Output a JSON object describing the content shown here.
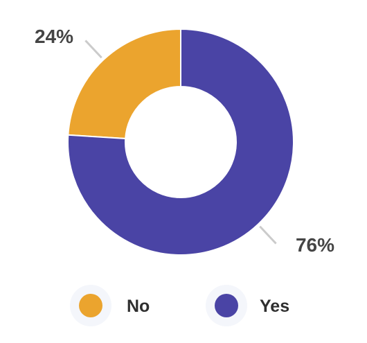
{
  "chart_data": {
    "type": "pie",
    "variant": "donut",
    "categories": [
      "No",
      "Yes"
    ],
    "values": [
      24,
      76
    ],
    "unit": "%",
    "data_labels": [
      "24%",
      "76%"
    ],
    "colors": [
      "#EBA42E",
      "#4A44A5"
    ],
    "legend": {
      "placement": "bottom",
      "entries": [
        "No",
        "Yes"
      ]
    }
  }
}
